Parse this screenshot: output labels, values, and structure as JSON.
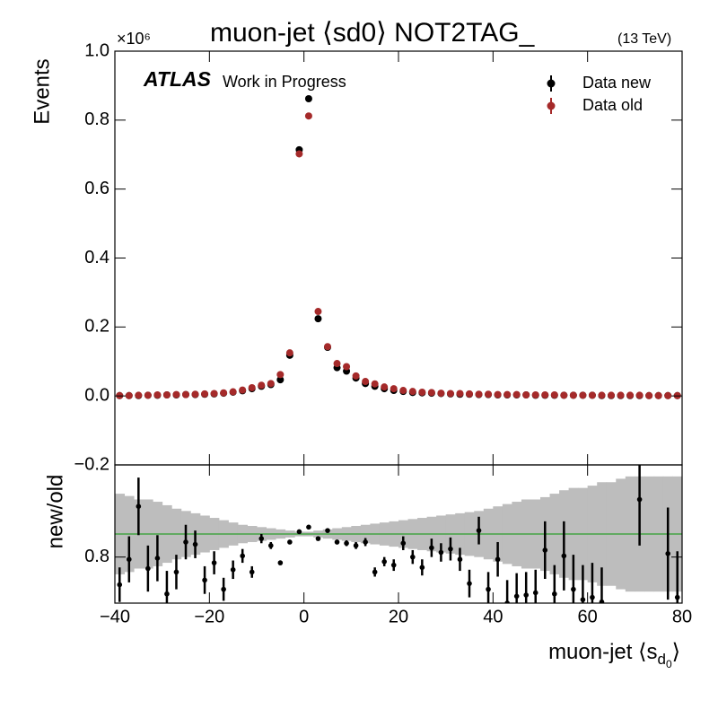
{
  "chart_data": [
    {
      "type": "scatter",
      "title": "muon-jet ⟨sd0⟩ NOT2TAG_",
      "energy": "(13 TeV)",
      "experiment": "ATLAS",
      "status": "Work in Progress",
      "y_multiplier": "×10⁶",
      "ylabel": "Events",
      "x": [
        -39,
        -37,
        -35,
        -33,
        -31,
        -29,
        -27,
        -25,
        -23,
        -21,
        -19,
        -17,
        -15,
        -13,
        -11,
        -9,
        -7,
        -5,
        -3,
        -1,
        1,
        3,
        5,
        7,
        9,
        11,
        13,
        15,
        17,
        19,
        21,
        23,
        25,
        27,
        29,
        31,
        33,
        35,
        37,
        39,
        41,
        43,
        45,
        47,
        49,
        51,
        53,
        55,
        57,
        59,
        61,
        63,
        65,
        67,
        69,
        71,
        73,
        75,
        77,
        79
      ],
      "series": [
        {
          "name": "Data new",
          "color": "#000000",
          "values": [
            0.001,
            0.001,
            0.001,
            0.002,
            0.002,
            0.003,
            0.003,
            0.004,
            0.004,
            0.005,
            0.006,
            0.008,
            0.011,
            0.015,
            0.021,
            0.028,
            0.033,
            0.047,
            0.118,
            0.714,
            0.862,
            0.224,
            0.141,
            0.082,
            0.072,
            0.052,
            0.036,
            0.028,
            0.021,
            0.016,
            0.013,
            0.01,
            0.009,
            0.008,
            0.007,
            0.006,
            0.005,
            0.005,
            0.004,
            0.004,
            0.003,
            0.003,
            0.003,
            0.003,
            0.002,
            0.002,
            0.002,
            0.002,
            0.002,
            0.002,
            0.002,
            0.001,
            0.001,
            0.001,
            0.001,
            0.001,
            0.001,
            0.001,
            0.001,
            0.001
          ]
        },
        {
          "name": "Data old",
          "color": "#a52a2a",
          "values": [
            0.001,
            0.001,
            0.002,
            0.002,
            0.003,
            0.003,
            0.004,
            0.004,
            0.005,
            0.006,
            0.007,
            0.009,
            0.012,
            0.017,
            0.024,
            0.031,
            0.036,
            0.062,
            0.125,
            0.702,
            0.812,
            0.245,
            0.143,
            0.094,
            0.085,
            0.058,
            0.042,
            0.035,
            0.026,
            0.021,
            0.016,
            0.013,
            0.011,
            0.01,
            0.008,
            0.007,
            0.007,
            0.006,
            0.005,
            0.005,
            0.004,
            0.004,
            0.004,
            0.003,
            0.003,
            0.003,
            0.003,
            0.002,
            0.002,
            0.002,
            0.002,
            0.002,
            0.002,
            0.002,
            0.002,
            0.002,
            0.001,
            0.001,
            0.001,
            0.001
          ]
        }
      ],
      "xlim": [
        -40,
        80
      ],
      "xticks": [
        -40,
        -20,
        0,
        20,
        40,
        60,
        80
      ],
      "ylim": [
        -0.2,
        1.0
      ],
      "yticks": [
        {
          "value": -0.2,
          "label": "−0.2"
        },
        {
          "value": 0,
          "label": "0.0"
        },
        0.2,
        0.4,
        0.6,
        0.8,
        {
          "value": 1.0,
          "label": "1.0"
        }
      ],
      "legend": "upper right"
    },
    {
      "type": "ratio",
      "ylabel": "new/old",
      "xlabel_parts": [
        "muon-jet ⟨s",
        "d",
        "0",
        "⟩"
      ],
      "x": [
        -39,
        -37,
        -35,
        -33,
        -31,
        -29,
        -27,
        -25,
        -23,
        -21,
        -19,
        -17,
        -15,
        -13,
        -11,
        -9,
        -7,
        -5,
        -3,
        -1,
        1,
        3,
        5,
        7,
        9,
        11,
        13,
        15,
        17,
        19,
        21,
        23,
        25,
        27,
        29,
        31,
        33,
        35,
        37,
        39,
        41,
        43,
        45,
        47,
        49,
        51,
        53,
        55,
        57,
        59,
        61,
        63,
        65,
        67,
        69,
        71,
        73,
        75,
        77,
        79
      ],
      "values": [
        0.56,
        0.78,
        1.24,
        0.7,
        0.79,
        0.48,
        0.67,
        0.93,
        0.91,
        0.6,
        0.75,
        0.52,
        0.69,
        0.81,
        0.67,
        0.96,
        0.9,
        0.75,
        0.93,
        1.02,
        1.06,
        0.96,
        1.03,
        0.93,
        0.92,
        0.9,
        0.93,
        0.67,
        0.76,
        0.73,
        0.92,
        0.8,
        0.71,
        0.88,
        0.84,
        0.87,
        0.78,
        0.57,
        1.03,
        0.52,
        0.78,
        0.4,
        0.46,
        0.47,
        0.49,
        0.86,
        0.48,
        0.81,
        0.52,
        0.43,
        0.45,
        0.41,
        null,
        null,
        null,
        1.3,
        null,
        null,
        0.83,
        0.45
      ],
      "errors": [
        0.15,
        0.2,
        0.25,
        0.2,
        0.2,
        0.2,
        0.15,
        0.15,
        0.12,
        0.12,
        0.1,
        0.1,
        0.08,
        0.06,
        0.05,
        0.04,
        0.03,
        0.02,
        0.015,
        0.008,
        0.006,
        0.01,
        0.015,
        0.02,
        0.025,
        0.03,
        0.035,
        0.04,
        0.04,
        0.05,
        0.06,
        0.06,
        0.07,
        0.08,
        0.08,
        0.1,
        0.1,
        0.12,
        0.12,
        0.15,
        0.15,
        0.2,
        0.2,
        0.2,
        0.2,
        0.25,
        0.25,
        0.3,
        0.3,
        0.3,
        0.3,
        0.3,
        null,
        null,
        null,
        0.4,
        null,
        null,
        0.4,
        0.4
      ],
      "band": [
        0.35,
        0.33,
        0.3,
        0.3,
        0.28,
        0.25,
        0.22,
        0.2,
        0.18,
        0.16,
        0.14,
        0.12,
        0.1,
        0.08,
        0.07,
        0.06,
        0.05,
        0.04,
        0.03,
        0.02,
        0.02,
        0.03,
        0.04,
        0.05,
        0.06,
        0.07,
        0.08,
        0.09,
        0.1,
        0.11,
        0.12,
        0.13,
        0.14,
        0.15,
        0.16,
        0.17,
        0.18,
        0.19,
        0.2,
        0.22,
        0.24,
        0.26,
        0.28,
        0.3,
        0.3,
        0.32,
        0.35,
        0.38,
        0.4,
        0.4,
        0.42,
        0.45,
        0.45,
        0.48,
        0.5,
        0.5,
        0.5,
        0.5,
        0.5,
        0.5
      ],
      "color": "#000000",
      "band_color": "#bdbdbd",
      "reference": 1.0,
      "reference_color": "#2ca02c",
      "xlim": [
        -40,
        80
      ],
      "xticks": [
        {
          "value": -40,
          "label": "−40"
        },
        {
          "value": -20,
          "label": "−20"
        },
        0,
        20,
        40,
        60,
        80
      ],
      "ylim": [
        0.4,
        1.6
      ],
      "yticks": [
        0.8
      ]
    }
  ]
}
